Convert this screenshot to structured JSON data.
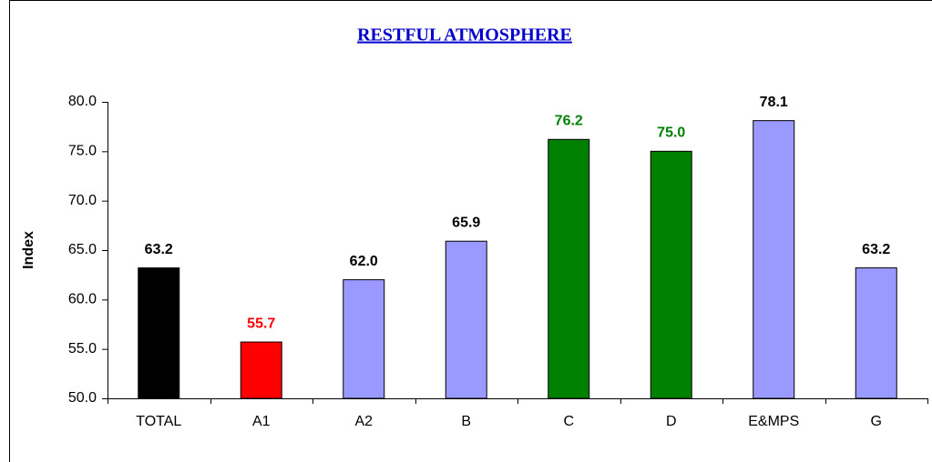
{
  "chart_data": {
    "type": "bar",
    "title": "RESTFUL ATMOSPHERE",
    "y_label": "Index",
    "categories": [
      "TOTAL",
      "A1",
      "A2",
      "B",
      "C",
      "D",
      "E&MPS",
      "G"
    ],
    "values": [
      63.2,
      55.7,
      62.0,
      65.9,
      76.2,
      75.0,
      78.1,
      63.2
    ],
    "value_labels": [
      "63.2",
      "55.7",
      "62.0",
      "65.9",
      "76.2",
      "75.0",
      "78.1",
      "63.2"
    ],
    "colors": [
      "#000000",
      "#ff0000",
      "#9999ff",
      "#9999ff",
      "#008000",
      "#008000",
      "#9999ff",
      "#9999ff"
    ],
    "label_colors": [
      "#000000",
      "#ff0000",
      "#000000",
      "#000000",
      "#008000",
      "#008000",
      "#000000",
      "#000000"
    ],
    "ylim": [
      50,
      80
    ],
    "yticks": [
      {
        "value": 50,
        "label": "50.0"
      },
      {
        "value": 55,
        "label": "55.0"
      },
      {
        "value": 60,
        "label": "60.0"
      },
      {
        "value": 65,
        "label": "65.0"
      },
      {
        "value": 70,
        "label": "70.0"
      },
      {
        "value": 75,
        "label": "75.0"
      },
      {
        "value": 80,
        "label": "80.0"
      }
    ],
    "grid": false
  }
}
